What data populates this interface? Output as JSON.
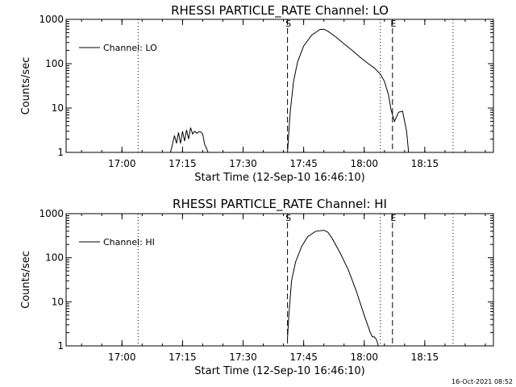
{
  "timestamp": "16-Oct-2021 08:52",
  "chart_data": [
    {
      "type": "line",
      "title": "RHESSI PARTICLE_RATE Channel: LO",
      "xlabel": "Start Time (12-Sep-10 16:46:10)",
      "ylabel": "Counts/sec",
      "yscale": "log",
      "ylim": [
        1,
        1000
      ],
      "xlim": [
        "16:46:10",
        "18:32:00"
      ],
      "xticks": [
        "17:00",
        "17:15",
        "17:30",
        "17:45",
        "18:00",
        "18:15"
      ],
      "yticks": [
        "1",
        "10",
        "100",
        "1000"
      ],
      "legend": {
        "label": "Channel: LO",
        "placement": "top-left"
      },
      "markers": [
        {
          "label": "S",
          "time": "17:41:00",
          "style": "dashed"
        },
        {
          "label": "E",
          "time": "18:07:00",
          "style": "dashed"
        },
        {
          "label": "",
          "time": "17:04:00",
          "style": "dotted"
        },
        {
          "label": "",
          "time": "18:04:00",
          "style": "dotted"
        },
        {
          "label": "",
          "time": "18:22:00",
          "style": "dotted"
        }
      ],
      "series": [
        {
          "segments": [
            {
              "x": [
                "17:12:00",
                "17:12:30",
                "17:13:00",
                "17:13:30",
                "17:14:00",
                "17:14:30",
                "17:15:00",
                "17:15:30",
                "17:16:00",
                "17:16:30",
                "17:17:00",
                "17:17:30",
                "17:18:00",
                "17:18:30",
                "17:19:00",
                "17:19:30",
                "17:20:00",
                "17:20:30",
                "17:21:00",
                "17:21:20"
              ],
              "y": [
                1.0,
                1.5,
                2.4,
                1.6,
                2.8,
                1.6,
                3.0,
                1.8,
                3.2,
                2.0,
                3.6,
                2.6,
                3.0,
                2.7,
                2.9,
                2.9,
                2.6,
                1.5,
                1.2,
                1.0
              ]
            },
            {
              "x": [
                "17:41:00",
                "17:41:40",
                "17:42:30",
                "17:43:30",
                "17:45:00",
                "17:47:00",
                "17:49:00",
                "17:50:00",
                "17:51:00",
                "17:53:00",
                "17:55:00",
                "17:57:00",
                "17:59:00",
                "18:01:00",
                "18:02:30",
                "18:04:00",
                "18:05:00",
                "18:06:00",
                "18:06:40",
                "18:07:30",
                "18:08:30",
                "18:09:30",
                "18:10:30",
                "18:11:00"
              ],
              "y": [
                1.0,
                8,
                40,
                110,
                250,
                440,
                590,
                600,
                540,
                400,
                280,
                200,
                140,
                100,
                80,
                58,
                40,
                20,
                9,
                5,
                8,
                8.5,
                3,
                1.0
              ]
            }
          ]
        }
      ]
    },
    {
      "type": "line",
      "title": "RHESSI PARTICLE_RATE Channel: HI",
      "xlabel": "Start Time (12-Sep-10 16:46:10)",
      "ylabel": "Counts/sec",
      "yscale": "log",
      "ylim": [
        1,
        1000
      ],
      "xlim": [
        "16:46:10",
        "18:32:00"
      ],
      "xticks": [
        "17:00",
        "17:15",
        "17:30",
        "17:45",
        "18:00",
        "18:15"
      ],
      "yticks": [
        "1",
        "10",
        "100",
        "1000"
      ],
      "legend": {
        "label": "Channel: HI",
        "placement": "top-left"
      },
      "markers": [
        {
          "label": "S",
          "time": "17:41:00",
          "style": "dashed"
        },
        {
          "label": "E",
          "time": "18:07:00",
          "style": "dashed"
        },
        {
          "label": "",
          "time": "17:04:00",
          "style": "dotted"
        },
        {
          "label": "",
          "time": "18:04:00",
          "style": "dotted"
        },
        {
          "label": "",
          "time": "18:22:00",
          "style": "dotted"
        }
      ],
      "series": [
        {
          "segments": [
            {
              "x": [
                "17:41:00",
                "17:41:20",
                "17:42:00",
                "17:43:00",
                "17:44:30",
                "17:46:00",
                "17:48:00",
                "17:50:00",
                "17:51:00",
                "17:52:00",
                "17:54:00",
                "17:56:00",
                "17:58:00",
                "18:00:00",
                "18:01:30",
                "18:02:00",
                "18:02:30",
                "18:03:00",
                "18:03:30"
              ],
              "y": [
                1.5,
                5,
                30,
                80,
                180,
                300,
                400,
                420,
                380,
                280,
                130,
                55,
                18,
                5,
                2.0,
                1.6,
                1.6,
                1.4,
                1.0
              ]
            }
          ]
        }
      ]
    }
  ]
}
